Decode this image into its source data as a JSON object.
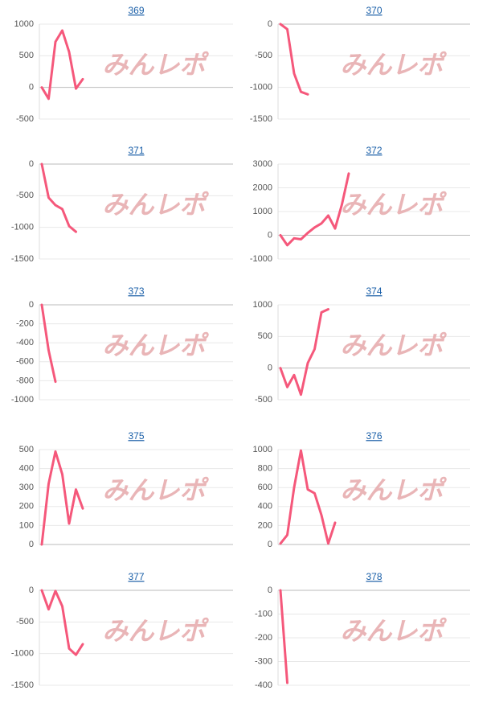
{
  "watermark": "みんレポ",
  "chart_data": [
    {
      "type": "line",
      "title": "369",
      "color": "#f5587b",
      "values": [
        0,
        -180,
        720,
        900,
        560,
        -20,
        130
      ],
      "ylim": [
        -500,
        1000
      ],
      "yticks": [
        -500,
        0,
        500,
        1000
      ],
      "grid": true
    },
    {
      "type": "line",
      "title": "370",
      "color": "#f5587b",
      "values": [
        0,
        -80,
        -780,
        -1070,
        -1110
      ],
      "ylim": [
        -1500,
        0
      ],
      "yticks": [
        -1500,
        -1000,
        -500,
        0
      ],
      "grid": true
    },
    {
      "type": "line",
      "title": "371",
      "color": "#f5587b",
      "values": [
        0,
        -530,
        -650,
        -710,
        -980,
        -1070
      ],
      "ylim": [
        -1500,
        0
      ],
      "yticks": [
        -1500,
        -1000,
        -500,
        0
      ],
      "grid": true
    },
    {
      "type": "line",
      "title": "372",
      "color": "#f5587b",
      "values": [
        0,
        -420,
        -130,
        -170,
        100,
        330,
        500,
        830,
        280,
        1300,
        2600
      ],
      "ylim": [
        -1000,
        3000
      ],
      "yticks": [
        -1000,
        0,
        1000,
        2000,
        3000
      ],
      "grid": true
    },
    {
      "type": "line",
      "title": "373",
      "color": "#f5587b",
      "values": [
        0,
        -480,
        -810
      ],
      "ylim": [
        -1000,
        0
      ],
      "yticks": [
        -1000,
        -800,
        -600,
        -400,
        -200,
        0
      ],
      "grid": true
    },
    {
      "type": "line",
      "title": "374",
      "color": "#f5587b",
      "values": [
        0,
        -300,
        -110,
        -420,
        80,
        300,
        880,
        930
      ],
      "ylim": [
        -500,
        1000
      ],
      "yticks": [
        -500,
        0,
        500,
        1000
      ],
      "grid": true
    },
    {
      "type": "line",
      "title": "375",
      "color": "#f5587b",
      "values": [
        0,
        320,
        490,
        370,
        110,
        290,
        190
      ],
      "ylim": [
        0,
        500
      ],
      "yticks": [
        0,
        100,
        200,
        300,
        400,
        500
      ],
      "grid": true
    },
    {
      "type": "line",
      "title": "376",
      "color": "#f5587b",
      "values": [
        10,
        100,
        600,
        990,
        580,
        540,
        310,
        10,
        230
      ],
      "ylim": [
        0,
        1000
      ],
      "yticks": [
        0,
        200,
        400,
        600,
        800,
        1000
      ],
      "grid": true
    },
    {
      "type": "line",
      "title": "377",
      "color": "#f5587b",
      "values": [
        0,
        -300,
        -10,
        -250,
        -920,
        -1020,
        -850
      ],
      "ylim": [
        -1500,
        0
      ],
      "yticks": [
        -1500,
        -1000,
        -500,
        0
      ],
      "grid": true
    },
    {
      "type": "line",
      "title": "378",
      "color": "#f5587b",
      "values": [
        0,
        -390
      ],
      "ylim": [
        -400,
        0
      ],
      "yticks": [
        -400,
        -300,
        -200,
        -100,
        0
      ],
      "grid": true
    }
  ]
}
